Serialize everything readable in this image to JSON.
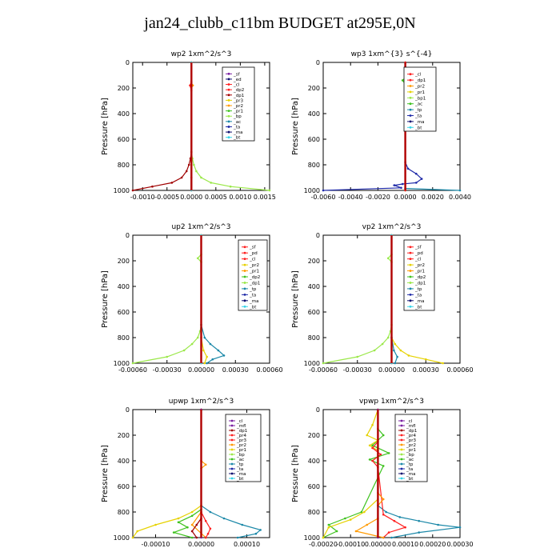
{
  "page_title": "jan24_clubb_c11bm  BUDGET at295E,0N",
  "colors": {
    "red": "#ff2020",
    "maroon": "#a00000",
    "purple": "#7a1fa2",
    "orange": "#ff9a00",
    "yellow": "#e6d200",
    "green": "#3ec21e",
    "lightgreen": "#9be84a",
    "teal": "#1b88a8",
    "blue": "#1f2aa8",
    "navy": "#101070",
    "cyan": "#36d4e8",
    "darkred": "#b00000"
  },
  "chart_data": [
    {
      "type": "line",
      "title": "wp2  1xm^2/s^3",
      "ylabel": "Pressure [hPa]",
      "xlim": [
        -0.0012,
        0.0016
      ],
      "ylim": [
        1000,
        0
      ],
      "xticks": [
        "-0.0010",
        "-0.0005",
        "0.0000",
        "0.0005",
        "0.0010",
        "0.0015"
      ],
      "xtick_values": [
        -0.001,
        -0.0005,
        0,
        0.0005,
        0.001,
        0.0015
      ],
      "yticks": [
        0,
        200,
        400,
        600,
        800,
        1000
      ],
      "legend": [
        "_sf",
        "_ed",
        "_cl",
        "_dp2",
        "_dp1",
        "_pr3",
        "_pr2",
        "_pr1",
        "_bp",
        "_ac",
        "_ta",
        "_ma",
        "_bt"
      ],
      "legend_colors": [
        "#7a1fa2",
        "#101070",
        "#ff2020",
        "#ff2020",
        "#a00000",
        "#e6d200",
        "#ff9a00",
        "#3ec21e",
        "#9be84a",
        "#1b88a8",
        "#1f2aa8",
        "#101070",
        "#36d4e8"
      ],
      "series": [
        {
          "name": "_pr1",
          "color": "#9be84a",
          "x": [
            0,
            0,
            2e-05,
            5e-05,
            0.0001,
            0.0002,
            0.0004,
            0.0008,
            0.0016
          ],
          "y": [
            0,
            700,
            750,
            800,
            850,
            900,
            940,
            970,
            1000
          ]
        },
        {
          "name": "_pr2",
          "color": "#ff9a00",
          "x": [
            0,
            0,
            3e-05,
            0,
            0,
            0,
            0
          ],
          "y": [
            0,
            160,
            180,
            200,
            700,
            900,
            1000
          ]
        },
        {
          "name": "_dp1",
          "color": "#a00000",
          "x": [
            0,
            0,
            -2e-05,
            -5e-05,
            -0.0001,
            -0.0002,
            -0.0004,
            -0.0008,
            -0.0012
          ],
          "y": [
            0,
            700,
            750,
            800,
            850,
            900,
            940,
            970,
            1000
          ]
        },
        {
          "name": "_cl",
          "color": "#ff2020",
          "x": [
            0,
            0,
            -3e-05,
            0,
            0,
            0
          ],
          "y": [
            0,
            150,
            180,
            220,
            900,
            1000
          ]
        },
        {
          "name": "_bt",
          "color": "#36d4e8",
          "x": [
            0,
            0
          ],
          "y": [
            0,
            1000
          ]
        }
      ]
    },
    {
      "type": "line",
      "title": "wp3  1xm^{3} s^{-4}",
      "ylabel": "Pressure [hPa]",
      "xlim": [
        -0.006,
        0.004
      ],
      "ylim": [
        1000,
        0
      ],
      "xticks": [
        "-0.0060",
        "-0.0040",
        "-0.0020",
        "0.0000",
        "0.0020",
        "0.0040"
      ],
      "xtick_values": [
        -0.006,
        -0.004,
        -0.002,
        0,
        0.002,
        0.004
      ],
      "yticks": [
        0,
        200,
        400,
        600,
        800,
        1000
      ],
      "legend": [
        "_cl",
        "_dp1",
        "_pr2",
        "_pr1",
        "_bp1",
        "_ac",
        "_tp",
        "_ta",
        "_ma",
        "_bt"
      ],
      "legend_colors": [
        "#ff2020",
        "#ff2020",
        "#ff9a00",
        "#e6d200",
        "#9be84a",
        "#3ec21e",
        "#1b88a8",
        "#1f2aa8",
        "#101070",
        "#36d4e8"
      ],
      "series": [
        {
          "name": "_ta",
          "color": "#1f2aa8",
          "x": [
            0,
            0,
            0.0002,
            0.0008,
            0.0012,
            0.0008,
            -0.0002,
            -0.0008,
            -0.0003,
            -0.006
          ],
          "y": [
            0,
            780,
            830,
            870,
            910,
            940,
            950,
            960,
            980,
            1000
          ]
        },
        {
          "name": "_ac",
          "color": "#3ec21e",
          "x": [
            0,
            0,
            -0.0002,
            0,
            0
          ],
          "y": [
            0,
            120,
            140,
            170,
            1000
          ]
        },
        {
          "name": "_tp",
          "color": "#1b88a8",
          "x": [
            0,
            0,
            0.004
          ],
          "y": [
            0,
            985,
            1000
          ]
        },
        {
          "name": "_dp1",
          "color": "#ff2020",
          "x": [
            0,
            0
          ],
          "y": [
            0,
            1000
          ]
        }
      ]
    },
    {
      "type": "line",
      "title": "up2  1xm^2/s^3",
      "ylabel": "Pressure [hPa]",
      "xlim": [
        -0.0006,
        0.0006
      ],
      "ylim": [
        1000,
        0
      ],
      "xticks": [
        "-0.00060",
        "-0.00030",
        "0.00000",
        "0.00030",
        "0.00060"
      ],
      "xtick_values": [
        -0.0006,
        -0.0003,
        0,
        0.0003,
        0.0006
      ],
      "yticks": [
        0,
        200,
        400,
        600,
        800,
        1000
      ],
      "legend": [
        "_sf",
        "_pd",
        "_cl",
        "_pr2",
        "_pr1",
        "_dp2",
        "_dp1",
        "_tp",
        "_ta",
        "_ma",
        "_bt"
      ],
      "legend_colors": [
        "#ff2020",
        "#ff2020",
        "#ff2020",
        "#e6d200",
        "#ff9a00",
        "#3ec21e",
        "#9be84a",
        "#1b88a8",
        "#1f2aa8",
        "#101070",
        "#36d4e8"
      ],
      "series": [
        {
          "name": "_dp1",
          "color": "#9be84a",
          "x": [
            0,
            0,
            -3e-05,
            0,
            0,
            -1e-05,
            -3e-05,
            -8e-05,
            -0.00015,
            -0.0003,
            -0.0006
          ],
          "y": [
            0,
            150,
            180,
            210,
            700,
            750,
            800,
            850,
            900,
            950,
            1000
          ]
        },
        {
          "name": "_tp",
          "color": "#1b88a8",
          "x": [
            0,
            0,
            3e-05,
            8e-05,
            0.00015,
            0.0002,
            0.0001,
            5e-05
          ],
          "y": [
            0,
            700,
            800,
            850,
            900,
            940,
            970,
            1000
          ]
        },
        {
          "name": "_pr2",
          "color": "#e6d200",
          "x": [
            0,
            0,
            2e-05,
            5e-05,
            3e-05
          ],
          "y": [
            0,
            800,
            900,
            950,
            1000
          ]
        },
        {
          "name": "_cl",
          "color": "#ff2020",
          "x": [
            0,
            0
          ],
          "y": [
            0,
            1000
          ]
        },
        {
          "name": "_bt",
          "color": "#36d4e8",
          "x": [
            0,
            0
          ],
          "y": [
            0,
            1000
          ]
        }
      ]
    },
    {
      "type": "line",
      "title": "vp2  1xm^2/s^3",
      "ylabel": "Pressure [hPa]",
      "xlim": [
        -0.0006,
        0.0006
      ],
      "ylim": [
        1000,
        0
      ],
      "xticks": [
        "-0.00060",
        "-0.00030",
        "0.00000",
        "0.00030",
        "0.00060"
      ],
      "xtick_values": [
        -0.0006,
        -0.0003,
        0,
        0.0003,
        0.0006
      ],
      "yticks": [
        0,
        200,
        400,
        600,
        800,
        1000
      ],
      "legend": [
        "_sf",
        "_pd",
        "_cl",
        "_pr2",
        "_pr1",
        "_dp2",
        "_dp1",
        "_tp",
        "_ta",
        "_ma",
        "_bt"
      ],
      "legend_colors": [
        "#ff2020",
        "#ff2020",
        "#ff2020",
        "#e6d200",
        "#ff9a00",
        "#3ec21e",
        "#9be84a",
        "#1b88a8",
        "#1f2aa8",
        "#101070",
        "#36d4e8"
      ],
      "series": [
        {
          "name": "_dp1",
          "color": "#9be84a",
          "x": [
            0,
            0,
            -3e-05,
            0,
            0,
            -1e-05,
            -3e-05,
            -8e-05,
            -0.00015,
            -0.0003,
            -0.0006
          ],
          "y": [
            0,
            150,
            180,
            210,
            700,
            750,
            800,
            850,
            900,
            950,
            1000
          ]
        },
        {
          "name": "_pr2",
          "color": "#e6d200",
          "x": [
            0,
            0,
            3e-05,
            8e-05,
            0.00015,
            0.0003,
            0.00045
          ],
          "y": [
            0,
            800,
            850,
            900,
            940,
            970,
            1000
          ]
        },
        {
          "name": "_tp",
          "color": "#1b88a8",
          "x": [
            0,
            0,
            2e-05,
            5e-05,
            3e-05
          ],
          "y": [
            0,
            800,
            900,
            950,
            1000
          ]
        },
        {
          "name": "_cl",
          "color": "#ff2020",
          "x": [
            0,
            0
          ],
          "y": [
            0,
            1000
          ]
        },
        {
          "name": "_bt",
          "color": "#36d4e8",
          "x": [
            0,
            0
          ],
          "y": [
            0,
            1000
          ]
        }
      ]
    },
    {
      "type": "line",
      "title": "upwp  1xm^2/s^3",
      "ylabel": "Pressure [hPa]",
      "xlim": [
        -0.00015,
        0.00015
      ],
      "ylim": [
        1000,
        0
      ],
      "xticks": [
        "-0.00010",
        "0.00000",
        "0.00010"
      ],
      "xtick_values": [
        -0.0001,
        0,
        0.0001
      ],
      "yticks": [
        0,
        200,
        400,
        600,
        800,
        1000
      ],
      "legend": [
        "_cl",
        "_mfl",
        "_dp1",
        "_pr4",
        "_pr3",
        "_pr2",
        "_pr1",
        "_bp",
        "_ac",
        "_tp",
        "_ta",
        "_ma",
        "_bt"
      ],
      "legend_colors": [
        "#7a1fa2",
        "#7a1fa2",
        "#a00000",
        "#ff2020",
        "#ff2020",
        "#ff9a00",
        "#e6d200",
        "#9be84a",
        "#3ec21e",
        "#1b88a8",
        "#1f2aa8",
        "#101070",
        "#36d4e8"
      ],
      "series": [
        {
          "name": "_ta",
          "color": "#1b88a8",
          "x": [
            0,
            0,
            2e-05,
            5e-05,
            9e-05,
            0.00013,
            0.00012,
            8e-05
          ],
          "y": [
            0,
            750,
            800,
            850,
            900,
            940,
            970,
            1000
          ]
        },
        {
          "name": "_pr2",
          "color": "#e6d200",
          "x": [
            0,
            0,
            -2e-05,
            -5e-05,
            -0.0001,
            -0.00014,
            -0.00015
          ],
          "y": [
            0,
            750,
            800,
            850,
            900,
            950,
            1000
          ]
        },
        {
          "name": "_ac",
          "color": "#3ec21e",
          "x": [
            0,
            0,
            -2e-05,
            -5e-05,
            -3e-05,
            -6e-05,
            -2e-05
          ],
          "y": [
            0,
            780,
            830,
            880,
            920,
            960,
            1000
          ]
        },
        {
          "name": "_pr1",
          "color": "#ff9a00",
          "x": [
            0,
            0,
            1e-05,
            0,
            0,
            -2e-05,
            1e-05
          ],
          "y": [
            0,
            400,
            430,
            460,
            800,
            900,
            1000
          ]
        },
        {
          "name": "_pr3",
          "color": "#ff2020",
          "x": [
            0,
            0,
            1e-05,
            2e-05,
            1.5e-05,
            1e-05
          ],
          "y": [
            0,
            800,
            870,
            930,
            970,
            1000
          ]
        },
        {
          "name": "_dp1",
          "color": "#a00000",
          "x": [
            0,
            0,
            -1e-05,
            -2e-05,
            -1e-05
          ],
          "y": [
            0,
            850,
            900,
            950,
            1000
          ]
        },
        {
          "name": "_cl",
          "color": "#7a1fa2",
          "x": [
            0,
            0
          ],
          "y": [
            0,
            1000
          ]
        }
      ]
    },
    {
      "type": "line",
      "title": "vpwp  1xm^2/s^3",
      "ylabel": "Pressure [hPa]",
      "xlim": [
        -0.0002,
        0.0003
      ],
      "ylim": [
        1000,
        0
      ],
      "xticks": [
        "-0.00020",
        "-0.00010",
        "0.00000",
        "0.00010",
        "0.00020",
        "0.00030"
      ],
      "xtick_values": [
        -0.0002,
        -0.0001,
        0,
        0.0001,
        0.0002,
        0.0003
      ],
      "yticks": [
        0,
        200,
        400,
        600,
        800,
        1000
      ],
      "legend": [
        "_cl",
        "_mfl",
        "_dp1",
        "_pr4",
        "_pr3",
        "_pr2",
        "_pr1",
        "_bp",
        "_ac",
        "_tp",
        "_ta",
        "_ma",
        "_bt"
      ],
      "legend_colors": [
        "#7a1fa2",
        "#7a1fa2",
        "#a00000",
        "#ff2020",
        "#ff2020",
        "#ff9a00",
        "#e6d200",
        "#9be84a",
        "#3ec21e",
        "#1b88a8",
        "#1f2aa8",
        "#101070",
        "#36d4e8"
      ],
      "series": [
        {
          "name": "_ta",
          "color": "#1b88a8",
          "x": [
            0,
            0,
            3e-05,
            8e-05,
            0.00015,
            0.00022,
            0.0003,
            0.00015,
            5e-05
          ],
          "y": [
            0,
            750,
            800,
            840,
            870,
            900,
            920,
            960,
            1000
          ]
        },
        {
          "name": "_ac",
          "color": "#3ec21e",
          "x": [
            0,
            0,
            2e-05,
            -2e-05,
            4e-05,
            -3e-05,
            2e-05,
            -6e-05,
            -0.00012,
            -0.00018,
            -0.00015,
            -0.0002
          ],
          "y": [
            0,
            150,
            200,
            280,
            340,
            390,
            440,
            800,
            850,
            900,
            950,
            1000
          ]
        },
        {
          "name": "_pr2",
          "color": "#e6d200",
          "x": [
            0,
            -2e-05,
            -4e-05,
            0,
            -3e-05,
            0,
            0,
            -5e-05,
            -0.0001,
            -0.00018,
            -0.0002
          ],
          "y": [
            0,
            120,
            200,
            240,
            280,
            320,
            700,
            800,
            860,
            920,
            1000
          ]
        },
        {
          "name": "_pr3",
          "color": "#ff2020",
          "x": [
            0,
            0,
            -2e-05,
            1e-05,
            -2e-05,
            0,
            2e-05,
            6e-05,
            0.0001,
            4e-05,
            2e-05
          ],
          "y": [
            0,
            250,
            300,
            350,
            400,
            450,
            820,
            870,
            920,
            960,
            1000
          ]
        },
        {
          "name": "_pr1",
          "color": "#ff9a00",
          "x": [
            0,
            0,
            2e-05,
            0,
            0,
            -4e-05,
            -8e-05,
            2e-05
          ],
          "y": [
            0,
            650,
            700,
            750,
            850,
            900,
            950,
            1000
          ]
        },
        {
          "name": "_cl",
          "color": "#7a1fa2",
          "x": [
            0,
            0
          ],
          "y": [
            0,
            1000
          ]
        }
      ]
    }
  ]
}
